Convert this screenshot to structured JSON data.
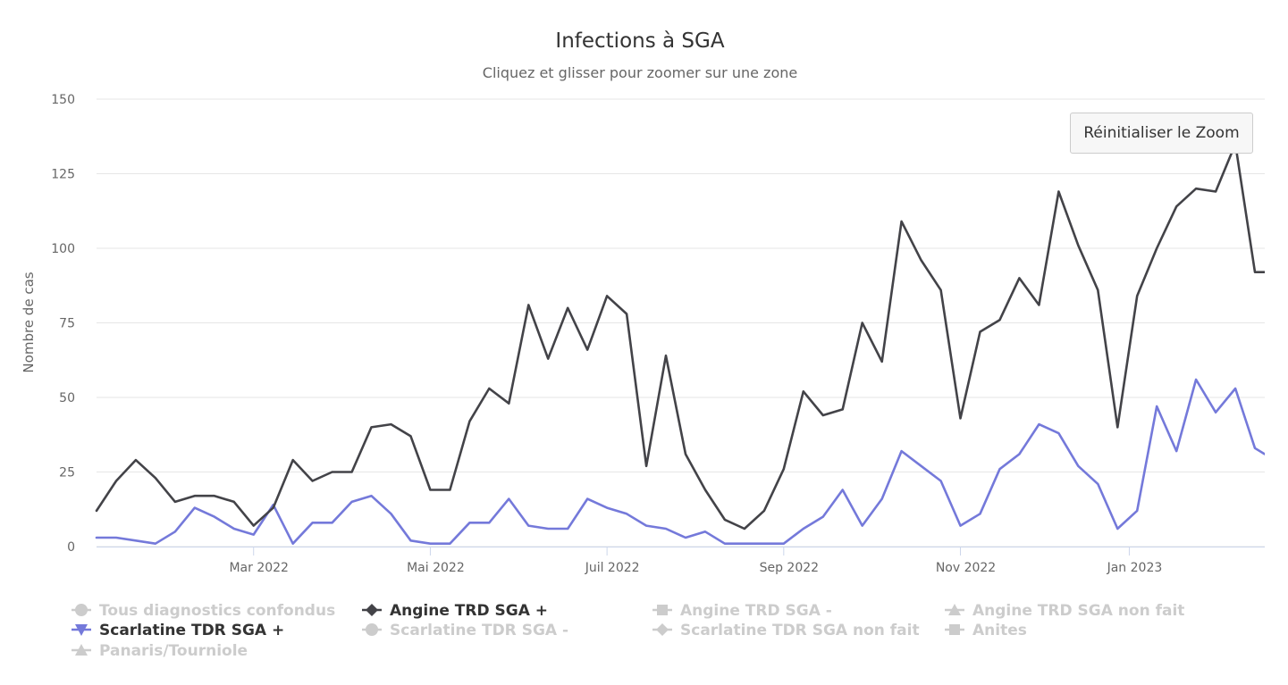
{
  "chart_data": {
    "type": "line",
    "title": "Infections à SGA",
    "subtitle": "Cliquez et glisser pour zoomer sur une zone",
    "ylabel": "Nombre de cas",
    "xlabel": "",
    "ylim": [
      0,
      150
    ],
    "y_ticks": [
      "0",
      "25",
      "50",
      "75",
      "100",
      "125",
      "150"
    ],
    "x_ticks": [
      "Mar 2022",
      "Mai 2022",
      "Juil 2022",
      "Sep 2022",
      "Nov 2022",
      "Jan 2023"
    ],
    "x_tick_weeks": [
      8,
      17,
      26,
      35,
      44,
      52.6
    ],
    "grid": true,
    "x_weeks": [
      0,
      1,
      2,
      3,
      4,
      5,
      6,
      7,
      8,
      9,
      10,
      11,
      12,
      13,
      14,
      15,
      16,
      17,
      18,
      19,
      20,
      21,
      22,
      23,
      24,
      25,
      26,
      27,
      28,
      29,
      30,
      31,
      32,
      33,
      34,
      35,
      36,
      37,
      38,
      39,
      40,
      41,
      42,
      43,
      44,
      45,
      46,
      47,
      48,
      49,
      50,
      51,
      52,
      53,
      54,
      55,
      56,
      57,
      58,
      59,
      59.5
    ],
    "series": [
      {
        "name": "Angine TRD SGA +",
        "color": "#434348",
        "visible": true,
        "values": [
          12,
          22,
          29,
          23,
          15,
          17,
          17,
          15,
          7,
          13,
          29,
          22,
          25,
          25,
          40,
          41,
          37,
          19,
          19,
          42,
          53,
          48,
          81,
          63,
          80,
          66,
          84,
          78,
          27,
          64,
          31,
          19,
          9,
          6,
          12,
          26,
          52,
          44,
          46,
          75,
          62,
          109,
          96,
          86,
          43,
          72,
          76,
          90,
          81,
          119,
          101,
          86,
          40,
          84,
          100,
          114,
          120,
          119,
          135,
          92,
          92
        ]
      },
      {
        "name": "Scarlatine TDR SGA +",
        "color": "#7479da",
        "visible": true,
        "values": [
          3,
          3,
          2,
          1,
          5,
          13,
          10,
          6,
          4,
          14,
          1,
          8,
          8,
          15,
          17,
          11,
          2,
          1,
          1,
          8,
          8,
          16,
          7,
          6,
          6,
          16,
          13,
          11,
          7,
          6,
          3,
          5,
          1,
          1,
          1,
          1,
          6,
          10,
          19,
          7,
          16,
          32,
          27,
          22,
          7,
          11,
          26,
          31,
          41,
          38,
          27,
          21,
          6,
          12,
          47,
          32,
          56,
          45,
          53,
          33,
          31
        ]
      }
    ],
    "legend": {
      "placement": "bottom",
      "items": [
        {
          "label": "Tous diagnostics confondus",
          "color": "#cccccc",
          "marker": "circle",
          "active": false
        },
        {
          "label": "Angine TRD SGA +",
          "color": "#434348",
          "marker": "diamond",
          "active": true
        },
        {
          "label": "Angine TRD SGA -",
          "color": "#cccccc",
          "marker": "square",
          "active": false
        },
        {
          "label": "Angine TRD SGA non fait",
          "color": "#cccccc",
          "marker": "triangle",
          "active": false
        },
        {
          "label": "Scarlatine TDR SGA +",
          "color": "#7479da",
          "marker": "triangle-down",
          "active": true
        },
        {
          "label": "Scarlatine TDR SGA -",
          "color": "#cccccc",
          "marker": "circle",
          "active": false
        },
        {
          "label": "Scarlatine TDR SGA non fait",
          "color": "#cccccc",
          "marker": "diamond",
          "active": false
        },
        {
          "label": "Anites",
          "color": "#cccccc",
          "marker": "square",
          "active": false
        },
        {
          "label": "Panaris/Tourniole",
          "color": "#cccccc",
          "marker": "triangle",
          "active": false
        }
      ]
    }
  },
  "reset_zoom_label": "Réinitialiser le Zoom"
}
